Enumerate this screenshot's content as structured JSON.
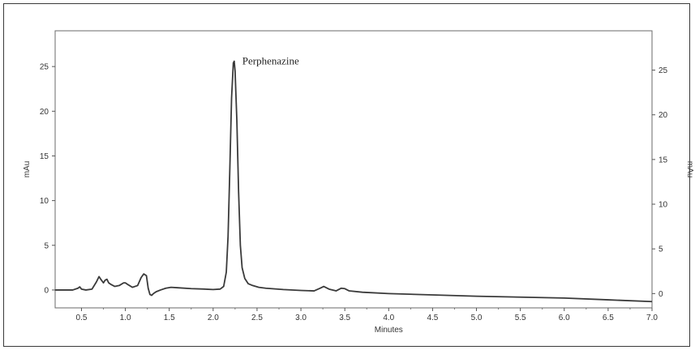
{
  "chart_data": {
    "type": "line",
    "title": "",
    "xlabel": "Minutes",
    "ylabel": "mAu",
    "ylabel_right": "mAu",
    "xlim": [
      0.2,
      7.0
    ],
    "ylim": [
      -2,
      29
    ],
    "x_ticks": [
      "0.5",
      "1.0",
      "1.5",
      "2.0",
      "2.5",
      "3.0",
      "3.5",
      "4.0",
      "4.5",
      "5.0",
      "5.5",
      "6.0",
      "6.5",
      "7.0"
    ],
    "y_ticks": [
      "0",
      "5",
      "10",
      "15",
      "20",
      "25"
    ],
    "annotations": [
      {
        "text": "Perphenazine",
        "x": 2.24,
        "y": 25.6
      }
    ],
    "series": [
      {
        "color": "#3a3a3a",
        "x": [
          0.2,
          0.4,
          0.46,
          0.48,
          0.5,
          0.55,
          0.62,
          0.67,
          0.7,
          0.72,
          0.75,
          0.77,
          0.79,
          0.81,
          0.84,
          0.88,
          0.93,
          0.98,
          1.0,
          1.03,
          1.08,
          1.14,
          1.18,
          1.21,
          1.24,
          1.26,
          1.28,
          1.3,
          1.32,
          1.35,
          1.4,
          1.46,
          1.52,
          1.6,
          1.75,
          1.9,
          2.0,
          2.08,
          2.12,
          2.15,
          2.17,
          2.19,
          2.21,
          2.23,
          2.24,
          2.25,
          2.27,
          2.29,
          2.31,
          2.33,
          2.36,
          2.4,
          2.45,
          2.52,
          2.6,
          2.8,
          3.0,
          3.15,
          3.22,
          3.26,
          3.32,
          3.4,
          3.46,
          3.5,
          3.55,
          3.7,
          4.0,
          4.5,
          5.0,
          5.5,
          6.0,
          6.5,
          7.0
        ],
        "y": [
          0.0,
          0.0,
          0.2,
          0.35,
          0.1,
          0.0,
          0.1,
          0.9,
          1.5,
          1.2,
          0.8,
          1.1,
          1.2,
          0.8,
          0.6,
          0.4,
          0.5,
          0.8,
          0.8,
          0.6,
          0.3,
          0.5,
          1.4,
          1.8,
          1.6,
          0.2,
          -0.5,
          -0.6,
          -0.4,
          -0.2,
          0.0,
          0.2,
          0.3,
          0.25,
          0.15,
          0.1,
          0.05,
          0.1,
          0.4,
          2.0,
          6.0,
          13.5,
          21.5,
          25.4,
          25.6,
          24.5,
          19.0,
          11.0,
          5.0,
          2.5,
          1.3,
          0.7,
          0.5,
          0.3,
          0.2,
          0.05,
          -0.05,
          -0.1,
          0.2,
          0.4,
          0.1,
          -0.1,
          0.2,
          0.15,
          -0.1,
          -0.25,
          -0.4,
          -0.55,
          -0.7,
          -0.8,
          -0.9,
          -1.1,
          -1.3
        ]
      }
    ]
  }
}
